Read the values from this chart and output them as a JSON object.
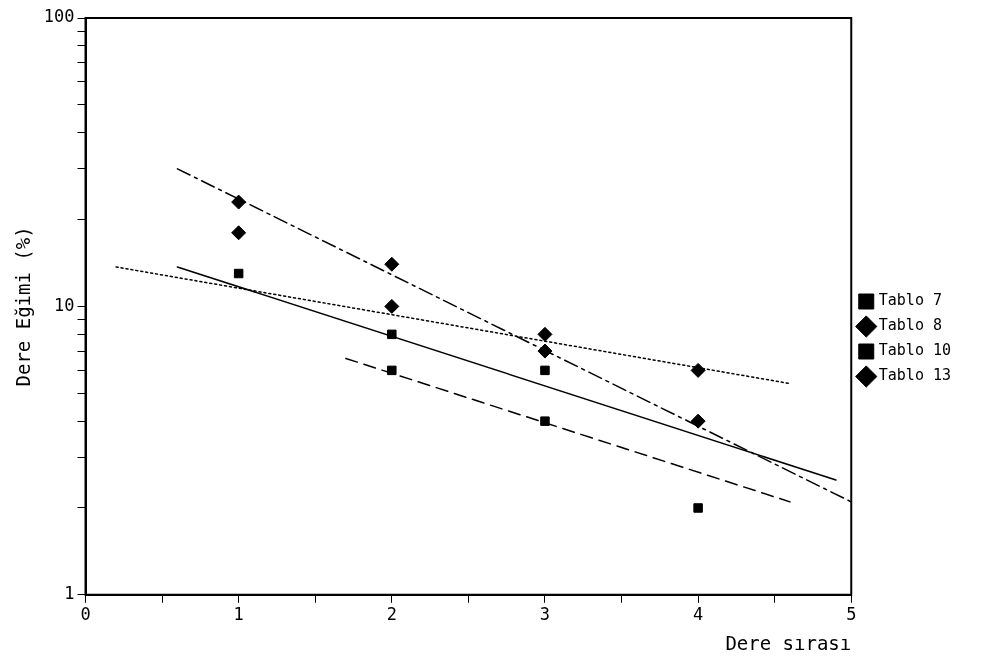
{
  "chart_data": {
    "type": "scatter",
    "xlabel": "Dere sırası",
    "ylabel": "Dere Eğimi (%)",
    "log": "y",
    "xlim": [
      0,
      5
    ],
    "xticks": [
      0,
      {
        "value": 0.5,
        "label": null
      },
      1,
      {
        "value": 1.5,
        "label": null
      },
      2,
      {
        "value": 2.5,
        "label": null
      },
      3,
      {
        "value": 3.5,
        "label": null
      },
      4,
      {
        "value": 4.5,
        "label": null
      },
      5
    ],
    "ylim": [
      1,
      100
    ],
    "yticks": [
      1,
      {
        "value": 2,
        "label": null
      },
      {
        "value": 3,
        "label": null
      },
      {
        "value": 4,
        "label": null
      },
      {
        "value": 5,
        "label": null
      },
      {
        "value": 6,
        "label": null
      },
      {
        "value": 7,
        "label": null
      },
      {
        "value": 8,
        "label": null
      },
      {
        "value": 9,
        "label": null
      },
      10,
      {
        "value": 20,
        "label": null
      },
      {
        "value": 30,
        "label": null
      },
      {
        "value": 40,
        "label": null
      },
      {
        "value": 50,
        "label": null
      },
      {
        "value": 60,
        "label": null
      },
      {
        "value": 70,
        "label": null
      },
      {
        "value": 80,
        "label": null
      },
      {
        "value": 90,
        "label": null
      },
      100
    ],
    "grid": false,
    "legend": "right",
    "series": [
      {
        "name": "Tablo 7",
        "marker": "square",
        "color": "#000000",
        "x": [
          2,
          3
        ],
        "values": [
          6,
          4
        ]
      },
      {
        "name": "Tablo 8",
        "marker": "diamond",
        "color": "#000000",
        "x": [
          1,
          2,
          3,
          4
        ],
        "values": [
          23,
          14,
          7,
          4
        ]
      },
      {
        "name": "Tablo 10",
        "marker": "square",
        "color": "#000000",
        "x": [
          1,
          2,
          3,
          4
        ],
        "values": [
          13,
          8,
          6,
          2
        ]
      },
      {
        "name": "Tablo 13",
        "marker": "diamond",
        "color": "#000000",
        "x": [
          1,
          2,
          3,
          4
        ],
        "values": [
          18,
          10,
          8,
          6
        ]
      },
      {
        "type": "line",
        "line_style": "dashed",
        "marker": "none",
        "color": "#000000",
        "x": [
          1.7,
          4.6
        ],
        "values": [
          6.6,
          2.1
        ]
      },
      {
        "type": "line",
        "line_style": "dashdot",
        "marker": "none",
        "color": "#000000",
        "x": [
          0.6,
          5
        ],
        "values": [
          30,
          2.1
        ]
      },
      {
        "type": "line",
        "line_style": "solid",
        "marker": "none",
        "color": "#000000",
        "x": [
          0.6,
          4.9
        ],
        "values": [
          13.7,
          2.5
        ]
      },
      {
        "type": "line",
        "line_style": "dotted",
        "marker": "none",
        "color": "#000000",
        "x": [
          0.2,
          4.6
        ],
        "values": [
          13.7,
          5.4
        ]
      }
    ]
  }
}
